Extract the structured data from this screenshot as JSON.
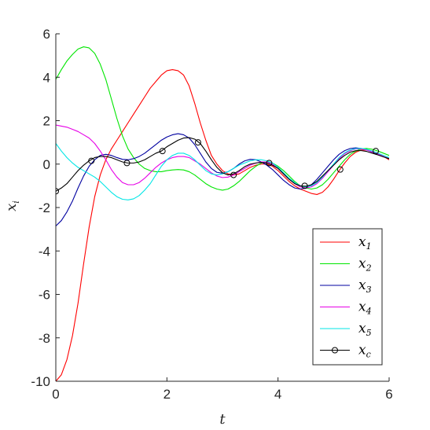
{
  "chart_data": {
    "type": "line",
    "title": "",
    "xlabel": "t",
    "ylabel": {
      "base": "x",
      "sub": "i"
    },
    "xlim": [
      0,
      6
    ],
    "ylim": [
      -10,
      6
    ],
    "xticks": [
      0,
      2,
      4,
      6
    ],
    "yticks": [
      -10,
      -8,
      -6,
      -4,
      -2,
      0,
      2,
      4,
      6
    ],
    "xtick_labels": [
      "0",
      "2",
      "4",
      "6"
    ],
    "ytick_labels": [
      "-10",
      "-8",
      "-6",
      "-4",
      "-2",
      "0",
      "2",
      "4",
      "6"
    ],
    "grid": false,
    "legend_position": "bottom-right",
    "series": [
      {
        "name": "x1",
        "name_base": "x",
        "name_sub": "1",
        "color": "#ff0000",
        "marker": "none",
        "x": [
          0,
          0.1,
          0.2,
          0.3,
          0.4,
          0.5,
          0.6,
          0.7,
          0.8,
          0.9,
          1.0,
          1.1,
          1.2,
          1.3,
          1.4,
          1.5,
          1.6,
          1.7,
          1.8,
          1.9,
          2.0,
          2.1,
          2.2,
          2.3,
          2.4,
          2.5,
          2.6,
          2.7,
          2.8,
          2.9,
          3.0,
          3.1,
          3.2,
          3.3,
          3.4,
          3.5,
          3.6,
          3.7,
          3.8,
          3.9,
          4.0,
          4.1,
          4.2,
          4.3,
          4.4,
          4.5,
          4.6,
          4.7,
          4.8,
          4.9,
          5.0,
          5.1,
          5.2,
          5.3,
          5.4,
          5.5,
          5.6,
          5.7,
          5.8,
          5.9,
          6.0
        ],
        "y": [
          -10,
          -9.7,
          -9.0,
          -7.9,
          -6.4,
          -4.6,
          -2.9,
          -1.5,
          -0.5,
          0.2,
          0.7,
          1.1,
          1.5,
          1.9,
          2.3,
          2.7,
          3.1,
          3.5,
          3.8,
          4.1,
          4.3,
          4.35,
          4.3,
          4.1,
          3.6,
          2.8,
          1.9,
          1.1,
          0.4,
          0.0,
          -0.3,
          -0.45,
          -0.5,
          -0.45,
          -0.3,
          -0.15,
          -0.05,
          0.0,
          0.0,
          -0.1,
          -0.3,
          -0.55,
          -0.8,
          -1.0,
          -1.15,
          -1.25,
          -1.35,
          -1.4,
          -1.3,
          -1.05,
          -0.7,
          -0.3,
          0.05,
          0.35,
          0.55,
          0.65,
          0.65,
          0.6,
          0.5,
          0.35,
          0.2
        ]
      },
      {
        "name": "x2",
        "name_base": "x",
        "name_sub": "2",
        "color": "#00e600",
        "marker": "none",
        "x": [
          0,
          0.1,
          0.2,
          0.3,
          0.4,
          0.5,
          0.6,
          0.7,
          0.8,
          0.9,
          1.0,
          1.1,
          1.2,
          1.3,
          1.4,
          1.5,
          1.6,
          1.7,
          1.8,
          1.9,
          2.0,
          2.1,
          2.2,
          2.3,
          2.4,
          2.5,
          2.6,
          2.7,
          2.8,
          2.9,
          3.0,
          3.1,
          3.2,
          3.3,
          3.4,
          3.5,
          3.6,
          3.7,
          3.8,
          3.9,
          4.0,
          4.1,
          4.2,
          4.3,
          4.4,
          4.5,
          4.6,
          4.7,
          4.8,
          4.9,
          5.0,
          5.1,
          5.2,
          5.3,
          5.4,
          5.5,
          5.6,
          5.7,
          5.8,
          5.9,
          6.0
        ],
        "y": [
          3.9,
          4.35,
          4.75,
          5.05,
          5.3,
          5.4,
          5.35,
          5.1,
          4.6,
          3.9,
          3.0,
          2.1,
          1.3,
          0.7,
          0.3,
          0.0,
          -0.2,
          -0.3,
          -0.35,
          -0.35,
          -0.3,
          -0.27,
          -0.25,
          -0.27,
          -0.35,
          -0.5,
          -0.7,
          -0.9,
          -1.05,
          -1.15,
          -1.2,
          -1.15,
          -1.0,
          -0.8,
          -0.55,
          -0.3,
          -0.1,
          0.05,
          0.1,
          0.05,
          -0.1,
          -0.3,
          -0.55,
          -0.8,
          -1.0,
          -1.1,
          -1.15,
          -1.1,
          -0.95,
          -0.7,
          -0.4,
          -0.1,
          0.2,
          0.45,
          0.6,
          0.7,
          0.72,
          0.68,
          0.6,
          0.5,
          0.4
        ]
      },
      {
        "name": "x3",
        "name_base": "x",
        "name_sub": "3",
        "color": "#0000a0",
        "marker": "none",
        "x": [
          0,
          0.1,
          0.2,
          0.3,
          0.4,
          0.5,
          0.6,
          0.7,
          0.8,
          0.9,
          1.0,
          1.1,
          1.2,
          1.3,
          1.4,
          1.5,
          1.6,
          1.7,
          1.8,
          1.9,
          2.0,
          2.1,
          2.2,
          2.3,
          2.4,
          2.5,
          2.6,
          2.7,
          2.8,
          2.9,
          3.0,
          3.1,
          3.2,
          3.3,
          3.4,
          3.5,
          3.6,
          3.7,
          3.8,
          3.9,
          4.0,
          4.1,
          4.2,
          4.3,
          4.4,
          4.5,
          4.6,
          4.7,
          4.8,
          4.9,
          5.0,
          5.1,
          5.2,
          5.3,
          5.4,
          5.5,
          5.6,
          5.7,
          5.8,
          5.9,
          6.0
        ],
        "y": [
          -2.85,
          -2.6,
          -2.2,
          -1.7,
          -1.1,
          -0.55,
          -0.1,
          0.2,
          0.4,
          0.45,
          0.4,
          0.3,
          0.22,
          0.2,
          0.25,
          0.35,
          0.5,
          0.7,
          0.9,
          1.1,
          1.25,
          1.35,
          1.4,
          1.35,
          1.2,
          0.9,
          0.5,
          0.1,
          -0.2,
          -0.38,
          -0.42,
          -0.35,
          -0.2,
          0.0,
          0.15,
          0.22,
          0.2,
          0.1,
          -0.05,
          -0.25,
          -0.5,
          -0.75,
          -0.95,
          -1.1,
          -1.15,
          -1.1,
          -0.95,
          -0.7,
          -0.4,
          -0.1,
          0.2,
          0.45,
          0.62,
          0.72,
          0.75,
          0.72,
          0.65,
          0.55,
          0.45,
          0.35,
          0.25
        ]
      },
      {
        "name": "x4",
        "name_base": "x",
        "name_sub": "4",
        "color": "#e600e6",
        "marker": "none",
        "x": [
          0,
          0.1,
          0.2,
          0.3,
          0.4,
          0.5,
          0.6,
          0.7,
          0.8,
          0.9,
          1.0,
          1.1,
          1.2,
          1.3,
          1.4,
          1.5,
          1.6,
          1.7,
          1.8,
          1.9,
          2.0,
          2.1,
          2.2,
          2.3,
          2.4,
          2.5,
          2.6,
          2.7,
          2.8,
          2.9,
          3.0,
          3.1,
          3.2,
          3.3,
          3.4,
          3.5,
          3.6,
          3.7,
          3.8,
          3.9,
          4.0,
          4.1,
          4.2,
          4.3,
          4.4,
          4.5,
          4.6,
          4.7,
          4.8,
          4.9,
          5.0,
          5.1,
          5.2,
          5.3,
          5.4,
          5.5,
          5.6,
          5.7,
          5.8,
          5.9,
          6.0
        ],
        "y": [
          1.8,
          1.75,
          1.7,
          1.6,
          1.5,
          1.35,
          1.2,
          0.95,
          0.6,
          0.2,
          -0.25,
          -0.6,
          -0.85,
          -0.95,
          -0.95,
          -0.85,
          -0.65,
          -0.4,
          -0.15,
          0.05,
          0.2,
          0.3,
          0.35,
          0.35,
          0.3,
          0.15,
          0.0,
          -0.2,
          -0.4,
          -0.55,
          -0.62,
          -0.6,
          -0.5,
          -0.35,
          -0.2,
          -0.05,
          0.05,
          0.1,
          0.1,
          0.0,
          -0.2,
          -0.45,
          -0.7,
          -0.9,
          -1.05,
          -1.1,
          -1.05,
          -0.9,
          -0.65,
          -0.35,
          -0.05,
          0.25,
          0.48,
          0.62,
          0.7,
          0.7,
          0.65,
          0.55,
          0.45,
          0.35,
          0.25
        ]
      },
      {
        "name": "x5",
        "name_base": "x",
        "name_sub": "5",
        "color": "#00e6e6",
        "marker": "none",
        "x": [
          0,
          0.1,
          0.2,
          0.3,
          0.4,
          0.5,
          0.6,
          0.7,
          0.8,
          0.9,
          1.0,
          1.1,
          1.2,
          1.3,
          1.4,
          1.5,
          1.6,
          1.7,
          1.8,
          1.9,
          2.0,
          2.1,
          2.2,
          2.3,
          2.4,
          2.5,
          2.6,
          2.7,
          2.8,
          2.9,
          3.0,
          3.1,
          3.2,
          3.3,
          3.4,
          3.5,
          3.6,
          3.7,
          3.8,
          3.9,
          4.0,
          4.1,
          4.2,
          4.3,
          4.4,
          4.5,
          4.6,
          4.7,
          4.8,
          4.9,
          5.0,
          5.1,
          5.2,
          5.3,
          5.4,
          5.5,
          5.6,
          5.7,
          5.8,
          5.9,
          6.0
        ],
        "y": [
          0.95,
          0.6,
          0.3,
          0.05,
          -0.15,
          -0.3,
          -0.45,
          -0.6,
          -0.8,
          -1.05,
          -1.3,
          -1.5,
          -1.62,
          -1.65,
          -1.6,
          -1.45,
          -1.2,
          -0.9,
          -0.5,
          -0.1,
          0.2,
          0.4,
          0.5,
          0.5,
          0.4,
          0.2,
          -0.05,
          -0.3,
          -0.45,
          -0.5,
          -0.45,
          -0.35,
          -0.2,
          -0.05,
          0.05,
          0.15,
          0.2,
          0.2,
          0.15,
          0.05,
          -0.15,
          -0.4,
          -0.65,
          -0.85,
          -1.0,
          -1.05,
          -1.0,
          -0.85,
          -0.6,
          -0.3,
          0.0,
          0.3,
          0.52,
          0.65,
          0.72,
          0.72,
          0.68,
          0.6,
          0.5,
          0.4,
          0.3
        ]
      },
      {
        "name": "xc",
        "name_base": "x",
        "name_sub": "c",
        "color": "#000000",
        "marker": "circle",
        "x": [
          0,
          0.1,
          0.2,
          0.3,
          0.4,
          0.5,
          0.6,
          0.7,
          0.8,
          0.9,
          1.0,
          1.1,
          1.2,
          1.3,
          1.4,
          1.5,
          1.6,
          1.7,
          1.8,
          1.9,
          2.0,
          2.1,
          2.2,
          2.3,
          2.4,
          2.5,
          2.6,
          2.7,
          2.8,
          2.9,
          3.0,
          3.1,
          3.2,
          3.3,
          3.4,
          3.5,
          3.6,
          3.7,
          3.8,
          3.9,
          4.0,
          4.1,
          4.2,
          4.3,
          4.4,
          4.5,
          4.6,
          4.7,
          4.8,
          4.9,
          5.0,
          5.1,
          5.2,
          5.3,
          5.4,
          5.5,
          5.6,
          5.7,
          5.8,
          5.9,
          6.0
        ],
        "y": [
          -1.25,
          -1.1,
          -0.9,
          -0.6,
          -0.3,
          -0.05,
          0.15,
          0.3,
          0.35,
          0.35,
          0.3,
          0.2,
          0.1,
          0.05,
          0.05,
          0.1,
          0.2,
          0.35,
          0.5,
          0.6,
          0.8,
          0.95,
          1.1,
          1.2,
          1.22,
          1.15,
          0.95,
          0.6,
          0.2,
          -0.15,
          -0.4,
          -0.5,
          -0.45,
          -0.3,
          -0.12,
          0.0,
          0.05,
          0.08,
          0.05,
          -0.05,
          -0.2,
          -0.45,
          -0.7,
          -0.9,
          -1.0,
          -1.02,
          -0.95,
          -0.8,
          -0.55,
          -0.3,
          -0.05,
          0.2,
          0.4,
          0.55,
          0.62,
          0.62,
          0.58,
          0.5,
          0.42,
          0.33,
          0.25
        ],
        "markers_x": [
          0,
          0.64,
          1.28,
          1.92,
          2.56,
          3.2,
          3.84,
          4.48,
          5.12,
          5.76
        ],
        "markers_y": [
          -1.25,
          0.15,
          0.05,
          0.6,
          1.0,
          -0.5,
          0.05,
          -1.0,
          -0.25,
          0.6
        ]
      }
    ]
  }
}
